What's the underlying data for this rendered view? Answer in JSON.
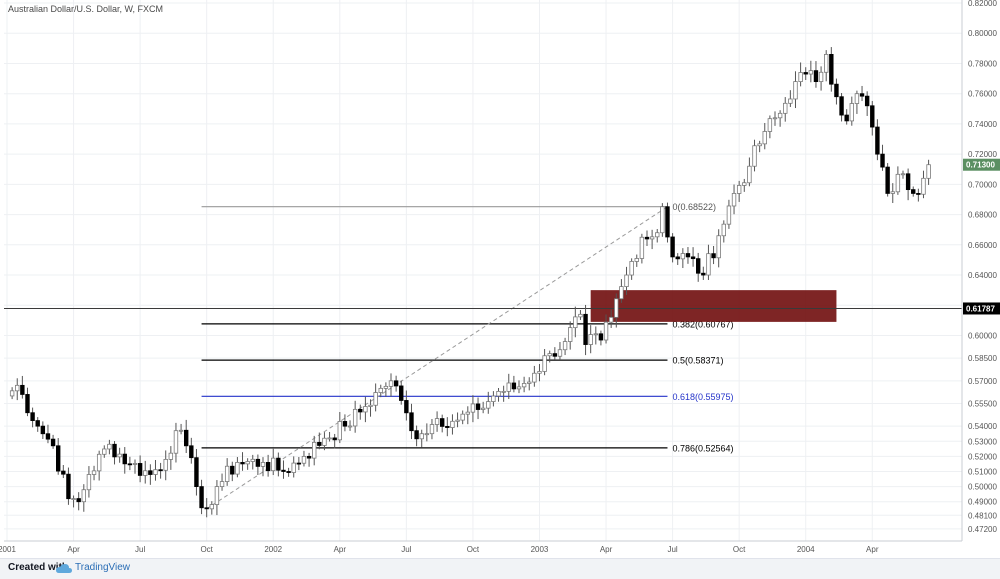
{
  "chart_data": {
    "type": "candlestick",
    "title": "Australian Dollar/U.S. Dollar, W, FXCM",
    "colors": {
      "up": "#ffffff",
      "down": "#000000",
      "wick": "#555555",
      "up_border": "#7a7a7a",
      "grid": "#eef0f3",
      "zone": "#700d0d",
      "fib_blue": "#2433c9",
      "price_box": "#5b8f62"
    },
    "ylim": [
      0.464,
      0.822
    ],
    "y_ticks": [
      0.472,
      0.481,
      0.49,
      0.5,
      0.51,
      0.52,
      0.53,
      0.54,
      0.555,
      0.57,
      0.585,
      0.6,
      0.62,
      0.64,
      0.66,
      0.68,
      0.7,
      0.72,
      0.74,
      0.76,
      0.78,
      0.8,
      0.82
    ],
    "x_ticks": [
      {
        "label": "2001",
        "week": 0
      },
      {
        "label": "Apr",
        "week": 13
      },
      {
        "label": "Jul",
        "week": 26
      },
      {
        "label": "Oct",
        "week": 39
      },
      {
        "label": "2002",
        "week": 52
      },
      {
        "label": "Apr",
        "week": 65
      },
      {
        "label": "Jul",
        "week": 78
      },
      {
        "label": "Oct",
        "week": 91
      },
      {
        "label": "2003",
        "week": 104
      },
      {
        "label": "Apr",
        "week": 117
      },
      {
        "label": "Jul",
        "week": 130
      },
      {
        "label": "Oct",
        "week": 143
      },
      {
        "label": "2004",
        "week": 156
      },
      {
        "label": "Apr",
        "week": 169
      }
    ],
    "anchors": [
      {
        "w": 0,
        "p": 0.56
      },
      {
        "w": 2,
        "p": 0.567
      },
      {
        "w": 6,
        "p": 0.54
      },
      {
        "w": 9,
        "p": 0.527
      },
      {
        "w": 12,
        "p": 0.492
      },
      {
        "w": 14,
        "p": 0.49
      },
      {
        "w": 16,
        "p": 0.508
      },
      {
        "w": 20,
        "p": 0.528
      },
      {
        "w": 24,
        "p": 0.515
      },
      {
        "w": 28,
        "p": 0.508
      },
      {
        "w": 31,
        "p": 0.518
      },
      {
        "w": 33,
        "p": 0.537
      },
      {
        "w": 35,
        "p": 0.527
      },
      {
        "w": 37,
        "p": 0.5
      },
      {
        "w": 38,
        "p": 0.486
      },
      {
        "w": 39,
        "p": 0.4853
      },
      {
        "w": 41,
        "p": 0.5
      },
      {
        "w": 45,
        "p": 0.516
      },
      {
        "w": 50,
        "p": 0.516
      },
      {
        "w": 54,
        "p": 0.51
      },
      {
        "w": 58,
        "p": 0.52
      },
      {
        "w": 62,
        "p": 0.532
      },
      {
        "w": 66,
        "p": 0.54
      },
      {
        "w": 70,
        "p": 0.553
      },
      {
        "w": 73,
        "p": 0.565
      },
      {
        "w": 75,
        "p": 0.57
      },
      {
        "w": 77,
        "p": 0.557
      },
      {
        "w": 79,
        "p": 0.537
      },
      {
        "w": 81,
        "p": 0.535
      },
      {
        "w": 84,
        "p": 0.545
      },
      {
        "w": 88,
        "p": 0.544
      },
      {
        "w": 92,
        "p": 0.551
      },
      {
        "w": 96,
        "p": 0.563
      },
      {
        "w": 100,
        "p": 0.566
      },
      {
        "w": 103,
        "p": 0.575
      },
      {
        "w": 106,
        "p": 0.588
      },
      {
        "w": 109,
        "p": 0.596
      },
      {
        "w": 112,
        "p": 0.614
      },
      {
        "w": 113,
        "p": 0.594
      },
      {
        "w": 116,
        "p": 0.597
      },
      {
        "w": 118,
        "p": 0.612
      },
      {
        "w": 121,
        "p": 0.64
      },
      {
        "w": 124,
        "p": 0.665
      },
      {
        "w": 127,
        "p": 0.668
      },
      {
        "w": 128,
        "p": 0.6852
      },
      {
        "w": 130,
        "p": 0.652
      },
      {
        "w": 133,
        "p": 0.652
      },
      {
        "w": 136,
        "p": 0.64
      },
      {
        "w": 139,
        "p": 0.666
      },
      {
        "w": 142,
        "p": 0.694
      },
      {
        "w": 145,
        "p": 0.712
      },
      {
        "w": 148,
        "p": 0.735
      },
      {
        "w": 151,
        "p": 0.747
      },
      {
        "w": 154,
        "p": 0.768
      },
      {
        "w": 156,
        "p": 0.773
      },
      {
        "w": 158,
        "p": 0.768
      },
      {
        "w": 160,
        "p": 0.786
      },
      {
        "w": 162,
        "p": 0.758
      },
      {
        "w": 164,
        "p": 0.742
      },
      {
        "w": 166,
        "p": 0.76
      },
      {
        "w": 168,
        "p": 0.752
      },
      {
        "w": 170,
        "p": 0.72
      },
      {
        "w": 172,
        "p": 0.694
      },
      {
        "w": 175,
        "p": 0.707
      },
      {
        "w": 177,
        "p": 0.694
      },
      {
        "w": 179,
        "p": 0.704
      },
      {
        "w": 180,
        "p": 0.713
      }
    ],
    "fib_levels": [
      {
        "label": "0(0.68522)",
        "value": 0.68522,
        "color": "#9a9a9a"
      },
      {
        "label": "0.382(0.60767)",
        "value": 0.60767,
        "color": "#000000"
      },
      {
        "label": "0.5(0.58371)",
        "value": 0.58371,
        "color": "#000000"
      },
      {
        "label": "0.618(0.55975)",
        "value": 0.55975,
        "color": "#2433c9"
      },
      {
        "label": "0.786(0.52564)",
        "value": 0.52564,
        "color": "#000000"
      }
    ],
    "fib_range": {
      "week_start": 38,
      "week_end": 129
    },
    "trend_line": {
      "from": {
        "week": 39,
        "value": 0.4853
      },
      "to": {
        "week": 129,
        "value": 0.6852
      }
    },
    "zone": {
      "week_start": 114,
      "week_end": 162,
      "top": 0.63,
      "bottom": 0.609
    },
    "horizontal_line": {
      "value": 0.61787,
      "label": "0.61787"
    },
    "last_price": {
      "value": 0.713,
      "label": "0.71300"
    }
  },
  "footer": {
    "created": "Created with",
    "brand": "TradingView"
  }
}
